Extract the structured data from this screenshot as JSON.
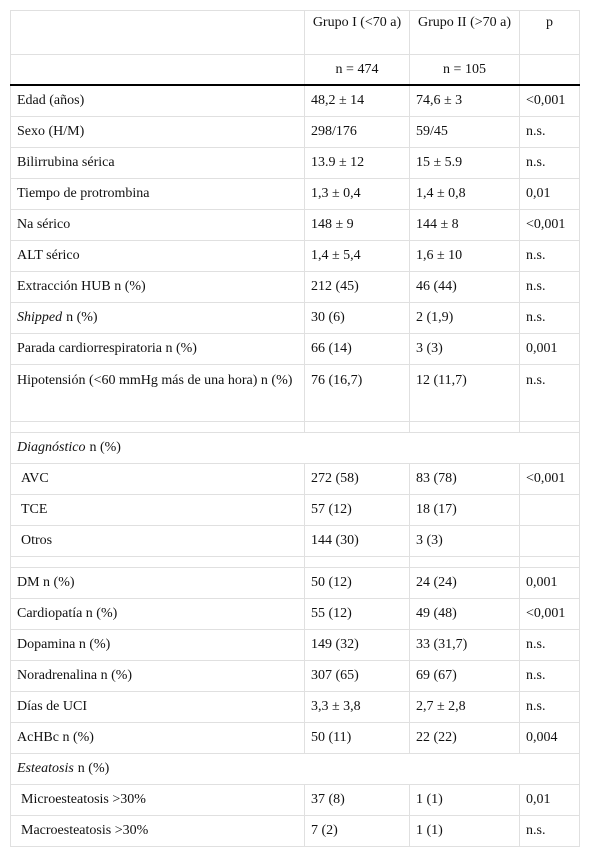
{
  "header": {
    "columns": [
      null,
      "Grupo I (<70 a)",
      "Grupo II (>70 a)",
      "p"
    ],
    "n": [
      null,
      "n = 474",
      "n = 105",
      null
    ]
  },
  "rows": [
    [
      "Edad (años)",
      "48,2 ± 14",
      "74,6 ± 3",
      "<0,001"
    ],
    [
      "Sexo (H/M)",
      "298/176",
      "59/45",
      "n.s."
    ],
    [
      "Bilirrubina sérica",
      "13.9 ± 12",
      "15 ± 5.9",
      "n.s."
    ],
    [
      "Tiempo de protrombina",
      "1,3 ± 0,4",
      "1,4 ± 0,8",
      "0,01"
    ],
    [
      "Na sérico",
      "148 ± 9",
      "144 ± 8",
      "<0,001"
    ],
    [
      "ALT sérico",
      "1,4 ± 5,4",
      "1,6 ± 10",
      "n.s."
    ],
    [
      "Extracción HUB n (%)",
      "212 (45)",
      "46 (44)",
      "n.s."
    ],
    [
      {
        "em": "Shipped",
        "text": "n (%)"
      },
      "30 (6)",
      "2 (1,9)",
      "n.s."
    ],
    [
      "Parada cardiorrespiratoria n (%)",
      "66 (14)",
      "3 (3)",
      "0,001"
    ],
    [
      "Hipotensión (<60 mmHg más de una hora) n (%)",
      "76 (16,7)",
      "12 (11,7)",
      "n.s."
    ],
    [
      null,
      null,
      null,
      null
    ],
    {
      "section": {
        "em": "Diagnóstico",
        "text": "n (%)"
      }
    },
    [
      "AVC",
      "272 (58)",
      "83 (78)",
      "<0,001"
    ],
    [
      "TCE",
      "57 (12)",
      "18 (17)",
      null
    ],
    [
      "Otros",
      "144 (30)",
      "3 (3)",
      null
    ],
    [
      null,
      null,
      null,
      null
    ],
    [
      "DM n (%)",
      "50 (12)",
      "24 (24)",
      "0,001"
    ],
    [
      "Cardiopatía n (%)",
      "55 (12)",
      "49 (48)",
      "<0,001"
    ],
    [
      "Dopamina n (%)",
      "149 (32)",
      "33 (31,7)",
      "n.s."
    ],
    [
      "Noradrenalina n (%)",
      "307 (65)",
      "69 (67)",
      "n.s."
    ],
    [
      "Días de UCI",
      "3,3 ± 3,8",
      "2,7 ± 2,8",
      "n.s."
    ],
    [
      "AcHBc n (%)",
      "50 (11)",
      "22 (22)",
      "0,004"
    ],
    {
      "section": {
        "em": "Esteatosis",
        "text": "n (%)"
      }
    },
    [
      "Microesteatosis >30%",
      "37 (8)",
      "1 (1)",
      "0,01"
    ],
    [
      "Macroesteatosis >30%",
      "7 (2)",
      "1 (1)",
      "n.s."
    ]
  ]
}
